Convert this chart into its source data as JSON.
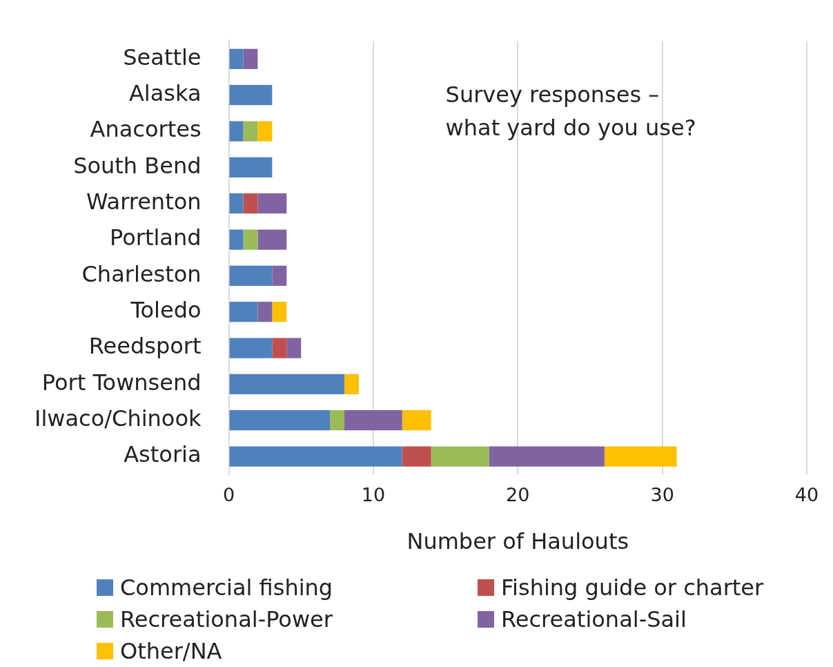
{
  "chart_data": {
    "type": "bar",
    "orientation": "horizontal",
    "stacked": true,
    "categories": [
      "Seattle",
      "Alaska",
      "Anacortes",
      "South Bend",
      "Warrenton",
      "Portland",
      "Charleston",
      "Toledo",
      "Reedsport",
      "Port Townsend",
      "Ilwaco/Chinook",
      "Astoria"
    ],
    "series": [
      {
        "name": "Commercial fishing",
        "color": "#4f81bd",
        "values": [
          1,
          3,
          1,
          3,
          1,
          1,
          3,
          2,
          3,
          8,
          7,
          12
        ]
      },
      {
        "name": "Fishing guide or charter",
        "color": "#c0504d",
        "values": [
          0,
          0,
          0,
          0,
          1,
          0,
          0,
          0,
          1,
          0,
          0,
          2
        ]
      },
      {
        "name": "Recreational-Power",
        "color": "#9bbb59",
        "values": [
          0,
          0,
          1,
          0,
          0,
          1,
          0,
          0,
          0,
          0,
          1,
          4
        ]
      },
      {
        "name": "Recreational-Sail",
        "color": "#8064a2",
        "values": [
          1,
          0,
          0,
          0,
          2,
          2,
          1,
          1,
          1,
          0,
          4,
          8
        ]
      },
      {
        "name": "Other/NA",
        "color": "#ffc000",
        "values": [
          0,
          0,
          1,
          0,
          0,
          0,
          0,
          1,
          0,
          1,
          2,
          5
        ]
      }
    ],
    "xlabel": "Number of Haulouts",
    "xlim": [
      0,
      40
    ],
    "xticks": [
      0,
      10,
      20,
      30,
      40
    ],
    "grid": "x",
    "legend": "bottom",
    "annotations": [
      "Survey responses –\nwhat yard do you use?"
    ]
  }
}
